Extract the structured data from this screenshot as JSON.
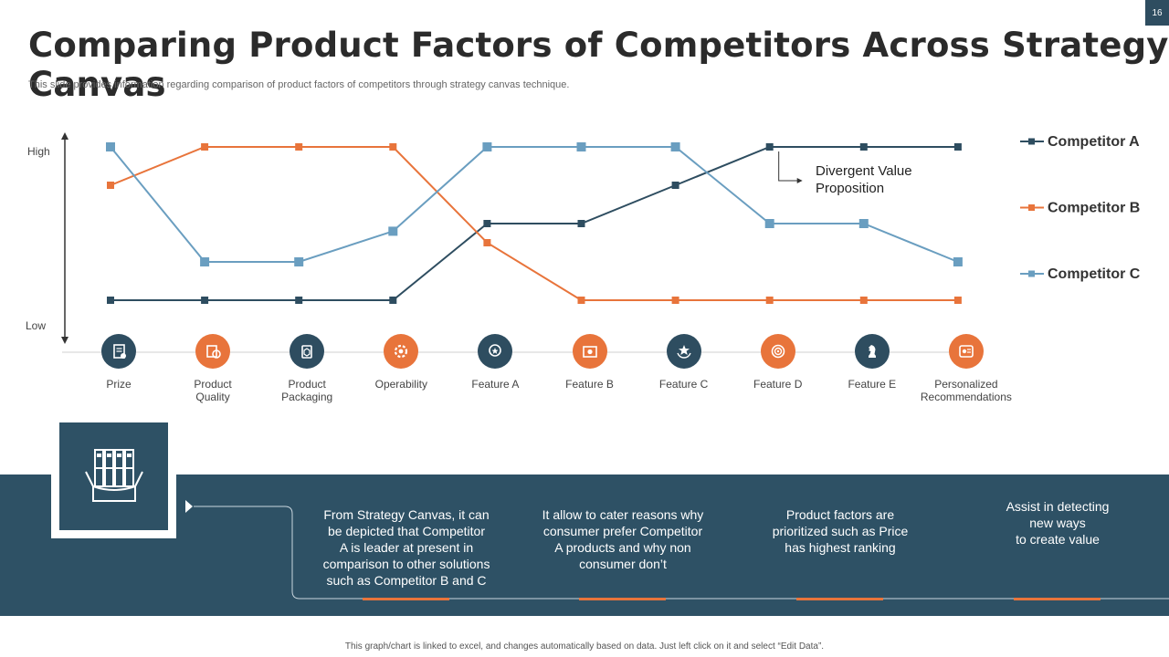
{
  "page_number": "16",
  "title": "Comparing Product Factors of Competitors Across Strategy Canvas",
  "subtitle": "This slide provides information regarding comparison of product factors of competitors through strategy canvas technique.",
  "colors": {
    "competitor_a": "#2e4d60",
    "competitor_b": "#e8743b",
    "competitor_c": "#6a9ec0",
    "band": "#2e5165"
  },
  "chart_data": {
    "type": "line",
    "y_axis": {
      "high_label": "High",
      "low_label": "Low",
      "ylim": [
        0,
        4
      ]
    },
    "categories": [
      "Prize",
      "Product Quality",
      "Product Packaging",
      "Operability",
      "Feature A",
      "Feature B",
      "Feature C",
      "Feature D",
      "Feature E",
      "Personalized Recommendations"
    ],
    "category_lines": [
      [
        "Prize"
      ],
      [
        "Product",
        "Quality"
      ],
      [
        "Product",
        "Packaging"
      ],
      [
        "Operability"
      ],
      [
        "Feature A"
      ],
      [
        "Feature B"
      ],
      [
        "Feature C"
      ],
      [
        "Feature D"
      ],
      [
        "Feature E"
      ],
      [
        "Personalized",
        "Recommendations"
      ]
    ],
    "category_icons": [
      "document-icon",
      "quality-badge-icon",
      "package-icon",
      "gear-icon",
      "award-icon",
      "certificate-icon",
      "star-hands-icon",
      "target-head-icon",
      "chess-knight-icon",
      "recommendation-icon"
    ],
    "series": [
      {
        "name": "Competitor A",
        "color": "#2e4d60",
        "values": [
          0,
          0,
          0,
          0,
          2,
          2,
          3,
          4,
          4,
          4
        ]
      },
      {
        "name": "Competitor B",
        "color": "#e8743b",
        "values": [
          3,
          4,
          4,
          4,
          1.5,
          0,
          0,
          0,
          0,
          0
        ]
      },
      {
        "name": "Competitor C",
        "color": "#6a9ec0",
        "values": [
          4,
          1,
          1,
          1.8,
          4,
          4,
          4,
          2,
          2,
          1
        ]
      }
    ],
    "annotation": {
      "text_lines": [
        "Divergent Value",
        "Proposition"
      ],
      "at_category": "Feature D",
      "series": "Competitor A"
    },
    "legend_position": "right"
  },
  "bottom": {
    "columns": [
      {
        "lines": [
          "From Strategy Canvas, it can",
          "be depicted that Competitor",
          "A is leader at present in",
          "comparison to other solutions",
          "such as Competitor B and C"
        ]
      },
      {
        "lines": [
          "It allow to cater reasons why",
          "consumer prefer Competitor",
          "A products and why non",
          "consumer don’t"
        ]
      },
      {
        "lines": [
          "Product factors are",
          "prioritized such as Price",
          "has highest ranking"
        ]
      },
      {
        "lines": [
          "Assist in detecting",
          "new ways",
          "to create value"
        ]
      }
    ]
  },
  "footer": "This graph/chart is linked to excel, and changes automatically based on data. Just left click on it and select “Edit Data”."
}
